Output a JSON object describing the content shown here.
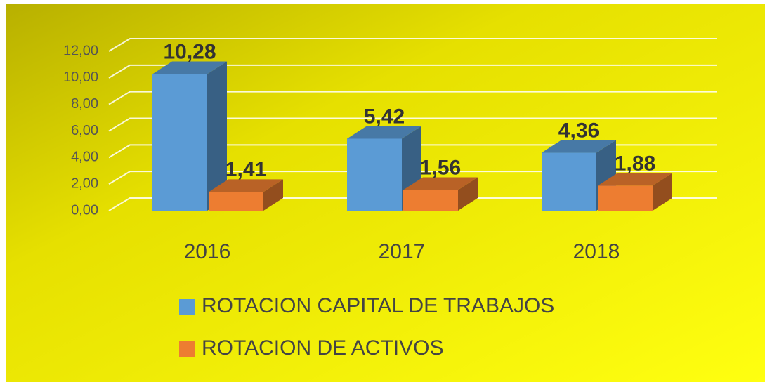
{
  "chart_data": {
    "type": "bar3d",
    "categories": [
      "2016",
      "2017",
      "2018"
    ],
    "series": [
      {
        "name": "ROTACION CAPITAL DE TRABAJOS",
        "color": "#5b9bd5",
        "values": [
          10.28,
          5.42,
          4.36
        ],
        "value_labels": [
          "10,28",
          "5,42",
          "4,36"
        ]
      },
      {
        "name": "ROTACION DE ACTIVOS",
        "color": "#ed7d31",
        "values": [
          1.41,
          1.56,
          1.88
        ],
        "value_labels": [
          "1,41",
          "1,56",
          "1,88"
        ]
      }
    ],
    "ylim": [
      0,
      12
    ],
    "yticks": [
      {
        "value": 0,
        "label": "0,00"
      },
      {
        "value": 2,
        "label": "2,00"
      },
      {
        "value": 4,
        "label": "4,00"
      },
      {
        "value": 6,
        "label": "6,00"
      },
      {
        "value": 8,
        "label": "8,00"
      },
      {
        "value": 10,
        "label": "10,00"
      },
      {
        "value": 12,
        "label": "12,00"
      }
    ],
    "grid": true,
    "legend": "bottom"
  }
}
